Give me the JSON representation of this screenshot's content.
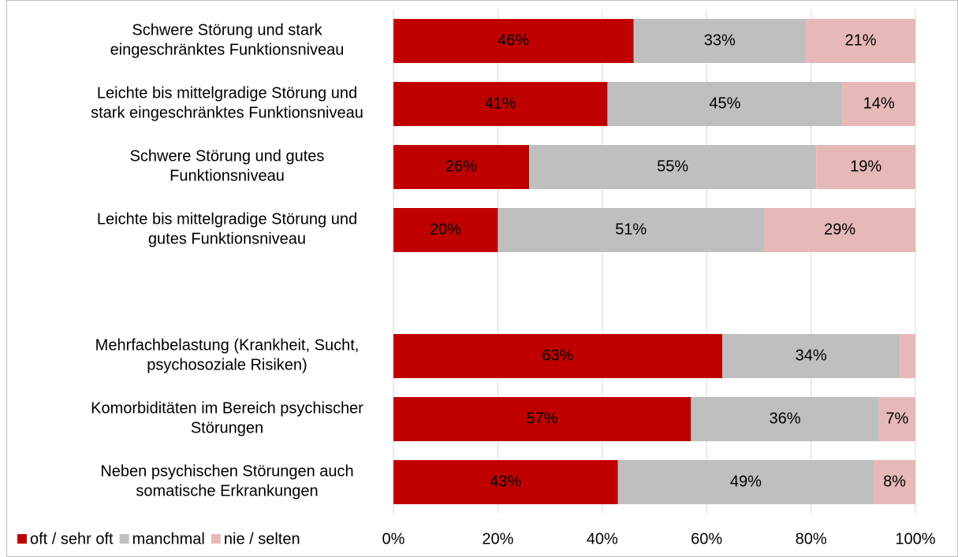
{
  "chart_data": {
    "type": "stacked-bar-horizontal",
    "categories": [
      "Schwere Störung und stark\neingeschränktes Funktionsniveau",
      "Leichte bis mittelgradige Störung und\nstark eingeschränktes Funktionsniveau",
      "Schwere Störung und gutes\nFunktionsniveau",
      "Leichte bis mittelgradige Störung und\ngutes Funktionsniveau",
      null,
      "Mehrfachbelastung (Krankheit, Sucht,\npsychosoziale Risiken)",
      "Komorbiditäten im Bereich psychischer\nStörungen",
      "Neben psychischen Störungen auch\nsomatische Erkrankungen"
    ],
    "series": [
      {
        "name": "oft / sehr oft",
        "color": "#c00000",
        "label_color": "#ffffff",
        "values": [
          46,
          41,
          26,
          20,
          null,
          63,
          57,
          43
        ],
        "value_labels": [
          "46%",
          "41%",
          "26%",
          "20%",
          null,
          "63%",
          "57%",
          "43%"
        ]
      },
      {
        "name": "manchmal",
        "color": "#bfbfbf",
        "label_color": "#404040",
        "values": [
          33,
          45,
          55,
          51,
          null,
          34,
          36,
          49
        ],
        "value_labels": [
          "33%",
          "45%",
          "55%",
          "51%",
          null,
          "34%",
          "36%",
          "49%"
        ]
      },
      {
        "name": "nie / selten",
        "color": "#e6b9b8",
        "label_color": "#404040",
        "values": [
          21,
          14,
          19,
          29,
          null,
          3,
          7,
          8
        ],
        "value_labels": [
          "21%",
          "14%",
          "19%",
          "29%",
          null,
          null,
          "7%",
          "8%"
        ]
      }
    ],
    "xlim": [
      0,
      100
    ],
    "xticks": [
      {
        "value": 0,
        "label": "0%"
      },
      {
        "value": 20,
        "label": "20%"
      },
      {
        "value": 40,
        "label": "40%"
      },
      {
        "value": 60,
        "label": "60%"
      },
      {
        "value": 80,
        "label": "80%"
      },
      {
        "value": 100,
        "label": "100%"
      }
    ],
    "grid": true,
    "legend": "bottom-left"
  }
}
